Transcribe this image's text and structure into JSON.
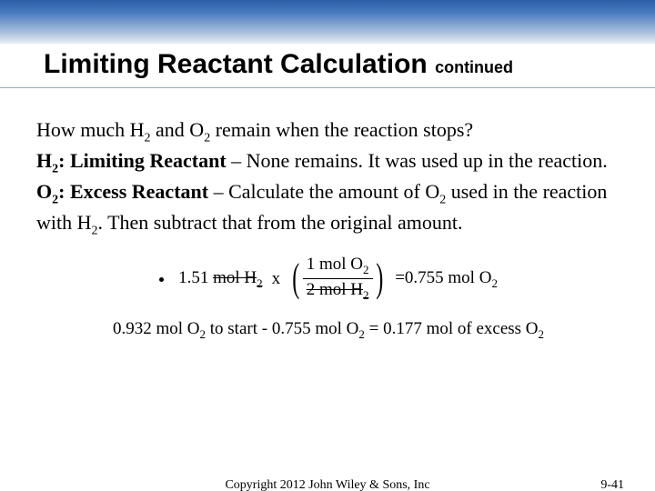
{
  "colors": {
    "gradient_top": "#2a5fa8",
    "gradient_mid1": "#4a7cbf",
    "gradient_mid2": "#9fb9d8",
    "gradient_bottom": "#e8eef6",
    "rule": "#8faed0",
    "text": "#000000",
    "bg": "#ffffff"
  },
  "title": {
    "main": "Limiting Reactant Calculation",
    "suffix": "continued",
    "main_fontsize": 30,
    "suffix_fontsize": 18
  },
  "body": {
    "q_a": "How much H",
    "q_b": " and O",
    "q_c": " remain when the reaction stops?",
    "h2_label": "H",
    "h2_text_a": ": Limiting Reactant",
    "h2_text_b": " – None remains.  It was used up in the reaction.",
    "o2_label": "O",
    "o2_text_a": ": Excess Reactant",
    "o2_text_b": " – Calculate the amount of O",
    "o2_text_c": " used in the reaction with H",
    "o2_text_d": ". Then subtract that from the original amount.",
    "sub2": "2",
    "fontsize": 22
  },
  "eq1": {
    "lhs_val": "1.51",
    "lhs_unit": "mol H",
    "times": "x",
    "num_a": "1 mol O",
    "den_a": "2 mol H",
    "eq": "=",
    "rhs_val": "0.755 mol O",
    "sub2": "2"
  },
  "eq2": {
    "a": "0.932 mol O",
    "b": " to start - 0.755 mol O",
    "c": " = 0.177 mol of excess O",
    "sub2": "2"
  },
  "footer": {
    "copyright": "Copyright 2012 John Wiley & Sons, Inc",
    "page": "9-41",
    "fontsize": 14
  }
}
